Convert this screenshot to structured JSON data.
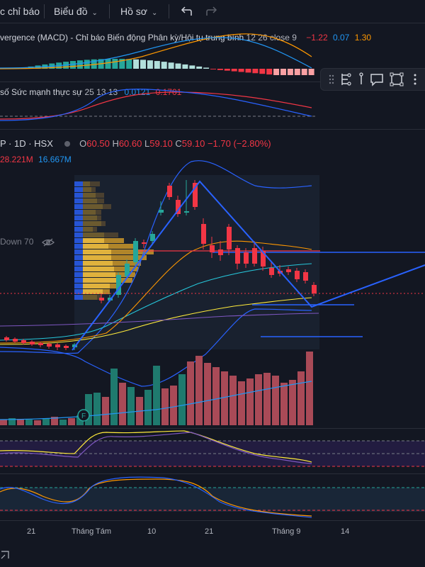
{
  "toolbar": {
    "indicators_label": "c chỉ báo",
    "chart_label": "Biểu đồ",
    "profile_label": "Hồ sơ"
  },
  "macd": {
    "title": "vergence (MACD) - Chỉ báo Biến động Phân kỳ/Hội tụ trung bình",
    "params": "12 26 close 9",
    "v1": "−1.22",
    "v2": "0.07",
    "v3": "1.30"
  },
  "rsi": {
    "title": "số Sức mạnh thực sự",
    "params": "25 13 13",
    "v1": "0.0121",
    "v2": "0.1701"
  },
  "main": {
    "symbol": "P · 1D · HSX",
    "o_label": "O",
    "o": "60.50",
    "h_label": "H",
    "h": "60.60",
    "l_label": "L",
    "l": "59.10",
    "c_label": "C",
    "c": "59.10",
    "change": "−1.70 (−2.80%)",
    "vol1": "28.221M",
    "vol2": "16.667M",
    "down_label": "Down 70"
  },
  "time_axis": [
    "21",
    "Tháng Tám",
    "10",
    "21",
    "Tháng 9",
    "14"
  ],
  "earnings_badge": "F",
  "colors": {
    "up": "#26a69a",
    "down": "#f23645",
    "background": "#131722",
    "trend": "#2962ff"
  }
}
